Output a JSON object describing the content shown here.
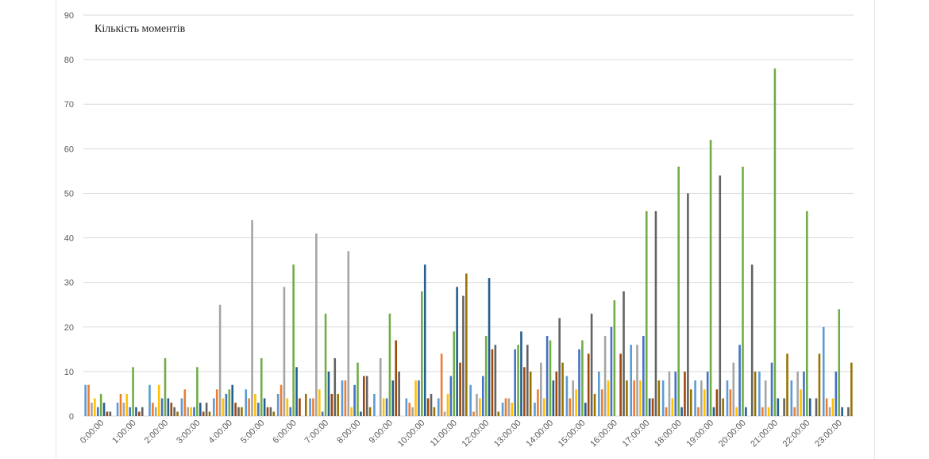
{
  "chart_data": {
    "type": "bar",
    "title": "Кількість моментів",
    "xlabel": "",
    "ylabel": "",
    "ylim": [
      0,
      90
    ],
    "yticks": [
      0,
      10,
      20,
      30,
      40,
      50,
      60,
      70,
      80,
      90
    ],
    "grid": true,
    "categories": [
      "0:00:00",
      "1:00:00",
      "2:00:00",
      "3:00:00",
      "4:00:00",
      "5:00:00",
      "6:00:00",
      "7:00:00",
      "8:00:00",
      "9:00:00",
      "10:00:00",
      "11:00:00",
      "12:00:00",
      "13:00:00",
      "14:00:00",
      "15:00:00",
      "16:00:00",
      "17:00:00",
      "18:00:00",
      "19:00:00",
      "20:00:00",
      "21:00:00",
      "22:00:00",
      "23:00:00"
    ],
    "series_colors": [
      "#5b9bd5",
      "#ed7d31",
      "#a5a5a5",
      "#ffc000",
      "#4472c4",
      "#70ad47",
      "#255e91",
      "#9e480e",
      "#636363",
      "#997300"
    ],
    "series": [
      {
        "values": [
          7,
          3,
          7,
          4,
          4,
          6,
          5,
          4,
          8,
          5,
          4,
          4,
          7,
          3,
          3,
          9,
          10,
          16,
          8,
          8,
          8,
          10,
          8,
          20
        ]
      },
      {
        "values": [
          7,
          5,
          3,
          6,
          6,
          4,
          7,
          4,
          8,
          0,
          3,
          14,
          1,
          4,
          6,
          4,
          6,
          8,
          2,
          2,
          6,
          2,
          2,
          4
        ]
      },
      {
        "values": [
          3,
          3,
          2,
          2,
          25,
          44,
          29,
          41,
          37,
          13,
          2,
          1,
          5,
          4,
          12,
          8,
          18,
          16,
          10,
          8,
          12,
          8,
          10,
          2
        ]
      },
      {
        "values": [
          4,
          5,
          7,
          2,
          4,
          5,
          4,
          6,
          2,
          4,
          8,
          5,
          4,
          3,
          4,
          6,
          8,
          8,
          4,
          6,
          2,
          2,
          6,
          4
        ]
      },
      {
        "values": [
          2,
          2,
          4,
          2,
          5,
          3,
          2,
          1,
          7,
          4,
          8,
          9,
          9,
          15,
          18,
          15,
          20,
          18,
          10,
          10,
          16,
          12,
          10,
          10
        ]
      },
      {
        "values": [
          5,
          11,
          13,
          11,
          6,
          13,
          34,
          23,
          12,
          23,
          28,
          19,
          18,
          16,
          17,
          17,
          26,
          46,
          56,
          62,
          56,
          78,
          46,
          24
        ]
      },
      {
        "values": [
          3,
          2,
          4,
          3,
          7,
          4,
          11,
          10,
          1,
          8,
          34,
          29,
          31,
          19,
          8,
          3,
          0,
          4,
          2,
          2,
          2,
          4,
          4,
          2
        ]
      },
      {
        "values": [
          1,
          1,
          3,
          1,
          3,
          2,
          4,
          5,
          9,
          17,
          4,
          12,
          15,
          11,
          10,
          14,
          14,
          4,
          10,
          6,
          0,
          0,
          0,
          0
        ]
      },
      {
        "values": [
          1,
          2,
          2,
          3,
          2,
          2,
          0,
          13,
          9,
          10,
          5,
          27,
          16,
          16,
          22,
          23,
          28,
          46,
          50,
          54,
          34,
          4,
          4,
          2
        ]
      },
      {
        "values": [
          0,
          0,
          1,
          1,
          2,
          1,
          5,
          5,
          2,
          0,
          2,
          32,
          1,
          10,
          12,
          5,
          8,
          8,
          6,
          4,
          10,
          14,
          14,
          12
        ]
      }
    ]
  }
}
